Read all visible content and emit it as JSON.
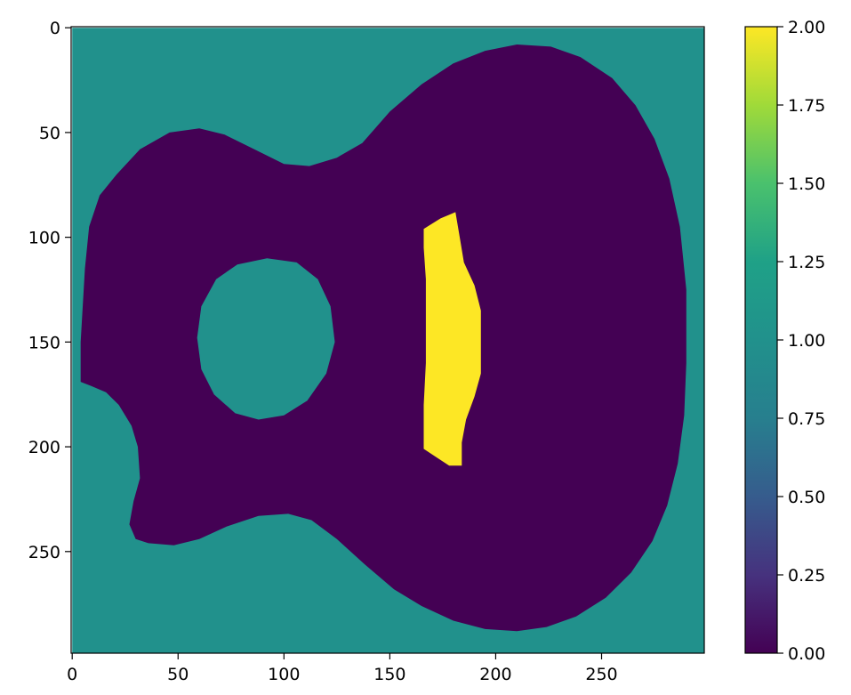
{
  "chart_data": {
    "type": "heatmap",
    "title": "",
    "xlabel": "",
    "ylabel": "",
    "image_extent": {
      "x": [
        0,
        299
      ],
      "y": [
        0,
        299
      ]
    },
    "xlim": [
      -0.5,
      298.5
    ],
    "ylim": [
      298.5,
      -0.5
    ],
    "y_axis_inverted": true,
    "x_ticks": [
      0,
      50,
      100,
      150,
      200,
      250
    ],
    "x_tick_labels": [
      "0",
      "50",
      "100",
      "150",
      "200",
      "250"
    ],
    "y_ticks": [
      0,
      50,
      100,
      150,
      200,
      250
    ],
    "y_tick_labels": [
      "0",
      "50",
      "100",
      "150",
      "200",
      "250"
    ],
    "grid": false,
    "colormap": "viridis",
    "colors": {
      "value_0": "#440154",
      "value_1": "#21918c",
      "value_2": "#fde725"
    },
    "regions": [
      {
        "value": 1,
        "description": "background",
        "outline": [
          [
            0,
            0
          ],
          [
            299,
            0
          ],
          [
            299,
            299
          ],
          [
            0,
            299
          ]
        ]
      },
      {
        "value": 0,
        "description": "guitar body",
        "outline": [
          [
            210,
            8
          ],
          [
            226,
            9
          ],
          [
            240,
            14
          ],
          [
            255,
            24
          ],
          [
            266,
            37
          ],
          [
            275,
            53
          ],
          [
            282,
            72
          ],
          [
            287,
            95
          ],
          [
            290,
            125
          ],
          [
            290,
            160
          ],
          [
            289,
            185
          ],
          [
            286,
            208
          ],
          [
            281,
            228
          ],
          [
            274,
            245
          ],
          [
            264,
            260
          ],
          [
            252,
            272
          ],
          [
            238,
            281
          ],
          [
            224,
            286
          ],
          [
            210,
            288
          ],
          [
            195,
            287
          ],
          [
            180,
            283
          ],
          [
            165,
            276
          ],
          [
            152,
            268
          ],
          [
            138,
            256
          ],
          [
            125,
            244
          ],
          [
            113,
            235
          ],
          [
            102,
            232
          ],
          [
            88,
            233
          ],
          [
            73,
            238
          ],
          [
            60,
            244
          ],
          [
            48,
            247
          ],
          [
            36,
            246
          ],
          [
            30,
            244
          ],
          [
            27,
            237
          ],
          [
            29,
            226
          ],
          [
            32,
            215
          ],
          [
            31,
            200
          ],
          [
            28,
            190
          ],
          [
            22,
            180
          ],
          [
            16,
            174
          ],
          [
            9,
            171
          ],
          [
            4,
            169
          ],
          [
            4,
            150
          ],
          [
            6,
            115
          ],
          [
            8,
            95
          ],
          [
            13,
            80
          ],
          [
            21,
            70
          ],
          [
            32,
            58
          ],
          [
            46,
            50
          ],
          [
            60,
            48
          ],
          [
            72,
            51
          ],
          [
            86,
            58
          ],
          [
            100,
            65
          ],
          [
            112,
            66
          ],
          [
            125,
            62
          ],
          [
            137,
            55
          ],
          [
            150,
            40
          ],
          [
            165,
            27
          ],
          [
            180,
            17
          ],
          [
            195,
            11
          ]
        ]
      },
      {
        "value": 1,
        "description": "sound hole",
        "outline": [
          [
            92,
            110
          ],
          [
            106,
            112
          ],
          [
            116,
            120
          ],
          [
            122,
            133
          ],
          [
            124,
            150
          ],
          [
            120,
            165
          ],
          [
            111,
            178
          ],
          [
            100,
            185
          ],
          [
            88,
            187
          ],
          [
            77,
            184
          ],
          [
            67,
            175
          ],
          [
            61,
            163
          ],
          [
            59,
            148
          ],
          [
            61,
            133
          ],
          [
            68,
            120
          ],
          [
            78,
            113
          ]
        ]
      },
      {
        "value": 2,
        "description": "bridge",
        "outline": [
          [
            166,
            96
          ],
          [
            174,
            91
          ],
          [
            181,
            88
          ],
          [
            183,
            100
          ],
          [
            185,
            112
          ],
          [
            190,
            123
          ],
          [
            193,
            135
          ],
          [
            193,
            150
          ],
          [
            193,
            165
          ],
          [
            190,
            176
          ],
          [
            186,
            187
          ],
          [
            184,
            198
          ],
          [
            184,
            209
          ],
          [
            178,
            209
          ],
          [
            172,
            205
          ],
          [
            166,
            201
          ],
          [
            166,
            180
          ],
          [
            167,
            160
          ],
          [
            167,
            140
          ],
          [
            167,
            120
          ],
          [
            166,
            105
          ]
        ]
      }
    ],
    "colorbar": {
      "range": [
        0,
        2
      ],
      "ticks": [
        0,
        0.25,
        0.5,
        0.75,
        1,
        1.25,
        1.5,
        1.75,
        2
      ],
      "tick_labels": [
        "0.00",
        "0.25",
        "0.50",
        "0.75",
        "1.00",
        "1.25",
        "1.50",
        "1.75",
        "2.00"
      ]
    }
  }
}
